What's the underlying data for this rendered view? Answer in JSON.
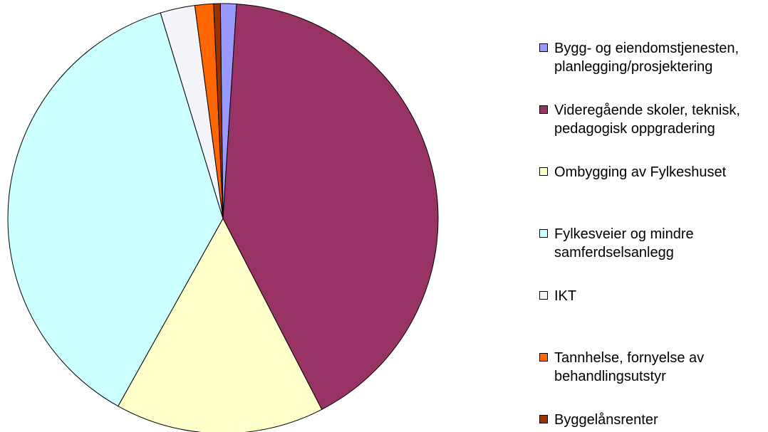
{
  "chart_data": {
    "type": "pie",
    "categories": [
      "Bygg- og eiendomstjenesten, planlegging/prosjektering",
      "Videregående skoler, teknisk, pedagogisk oppgradering",
      "Ombygging av Fylkeshuset",
      "Fylkesveier og mindre samferdselsanlegg",
      "IKT",
      "Tannhelse, fornyelse av behandlingsutstyr",
      "Byggelånsrenter"
    ],
    "values": [
      1.2,
      41.4,
      15.7,
      37.2,
      2.6,
      1.4,
      0.5
    ],
    "colors": [
      "#9999ff",
      "#993366",
      "#ffffcc",
      "#ccffff",
      "#f4f4fb",
      "#ff6600",
      "#993300"
    ]
  }
}
